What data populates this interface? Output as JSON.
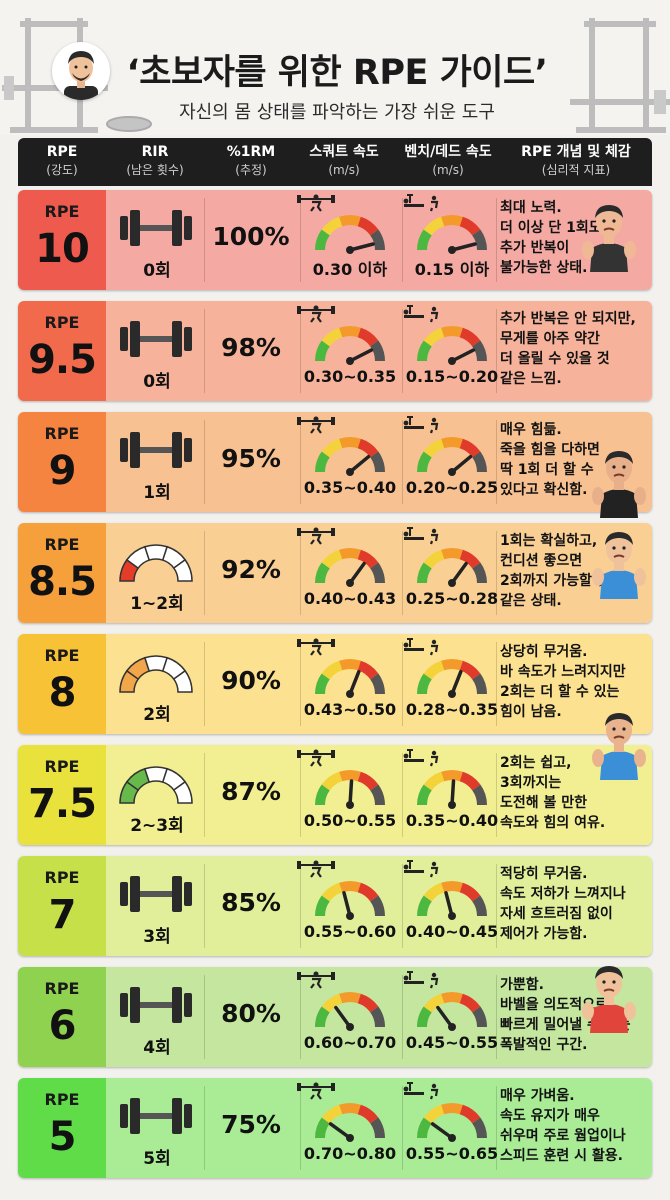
{
  "header": {
    "title": "‘초보자를 위한 RPE 가이드’",
    "subtitle": "자신의 몸 상태를 파악하는 가장 쉬운 도구"
  },
  "columns": [
    {
      "label": "RPE",
      "sub": "(강도)"
    },
    {
      "label": "RIR",
      "sub": "(남은 횟수)"
    },
    {
      "label": "%1RM",
      "sub": "(추정)"
    },
    {
      "label": "스쿼트 속도",
      "sub": "(m/s)"
    },
    {
      "label": "벤치/데드 속도",
      "sub": "(m/s)"
    },
    {
      "label": "RPE 개념 및 체감",
      "sub": "(심리적 지표)"
    }
  ],
  "rows": [
    {
      "label": "RPE",
      "value": "10",
      "rir": "0회",
      "rir_icon": "barbell-icon",
      "pct": "100%",
      "squat": "0.30 이하",
      "squat_level": 0.92,
      "bench": "0.15 이하",
      "bench_level": 0.92,
      "color": "#ef5a4e",
      "tint": "#f4a9a3",
      "lines": [
        "최대 노력.",
        "더 이상 단 1회도",
        "추가 반복이",
        "불가능한 상태."
      ]
    },
    {
      "label": "RPE",
      "value": "9.5",
      "rir": "0회",
      "rir_icon": "barbell-icon",
      "pct": "98%",
      "squat": "0.30~0.35",
      "squat_level": 0.85,
      "bench": "0.15~0.20",
      "bench_level": 0.85,
      "color": "#f26a4c",
      "tint": "#f6b29a",
      "lines": [
        "추가 반복은 안 되지만,",
        "무게를 아주 약간",
        "더 올릴 수 있을 것",
        "같은 느낌."
      ]
    },
    {
      "label": "RPE",
      "value": "9",
      "rir": "1회",
      "rir_icon": "barbell-icon",
      "pct": "95%",
      "squat": "0.35~0.40",
      "squat_level": 0.78,
      "bench": "0.20~0.25",
      "bench_level": 0.78,
      "color": "#f4843f",
      "tint": "#f8c191",
      "lines": [
        "매우 힘듦.",
        "죽을 힘을 다하면",
        "딱 1회 더 할 수",
        "있다고 확신함."
      ]
    },
    {
      "label": "RPE",
      "value": "8.5",
      "rir": "1~2회",
      "rir_icon": "arc-gauge-icon",
      "pct": "92%",
      "squat": "0.40~0.43",
      "squat_level": 0.7,
      "bench": "0.25~0.28",
      "bench_level": 0.7,
      "color": "#f6a03c",
      "tint": "#f9cf94",
      "lines": [
        "1회는 확실하고,",
        "컨디션 좋으면",
        "2회까지 가능할 것",
        "같은 상태."
      ]
    },
    {
      "label": "RPE",
      "value": "8",
      "rir": "2회",
      "rir_icon": "arc-gauge-icon",
      "pct": "90%",
      "squat": "0.43~0.50",
      "squat_level": 0.62,
      "bench": "0.28~0.35",
      "bench_level": 0.62,
      "color": "#f7c236",
      "tint": "#fbe190",
      "lines": [
        "상당히 무거움.",
        "바 속도가 느려지지만",
        "2회는 더 할 수 있는",
        "힘이 남음."
      ]
    },
    {
      "label": "RPE",
      "value": "7.5",
      "rir": "2~3회",
      "rir_icon": "arc-gauge-icon",
      "pct": "87%",
      "squat": "0.50~0.55",
      "squat_level": 0.52,
      "bench": "0.35~0.40",
      "bench_level": 0.52,
      "color": "#e9e23d",
      "tint": "#f2ef93",
      "lines": [
        "2회는 쉽고,",
        "3회까지는",
        "도전해 볼 만한",
        "속도와 힘의 여유."
      ]
    },
    {
      "label": "RPE",
      "value": "7",
      "rir": "3회",
      "rir_icon": "barbell-icon",
      "pct": "85%",
      "squat": "0.55~0.60",
      "squat_level": 0.42,
      "bench": "0.40~0.45",
      "bench_level": 0.42,
      "color": "#c6e04a",
      "tint": "#e1ef9a",
      "lines": [
        "적당히 무거움.",
        "속도 저하가 느껴지나",
        "자세 흐트러짐 없이",
        "제어가 가능함."
      ]
    },
    {
      "label": "RPE",
      "value": "6",
      "rir": "4회",
      "rir_icon": "barbell-icon",
      "pct": "80%",
      "squat": "0.60~0.70",
      "squat_level": 0.3,
      "bench": "0.45~0.55",
      "bench_level": 0.3,
      "color": "#8fd24f",
      "tint": "#c4e69f",
      "lines": [
        "가뿐함.",
        "바벨을 의도적으로",
        "빠르게 밀어낼 수 있는",
        "폭발적인 구간."
      ]
    },
    {
      "label": "RPE",
      "value": "5",
      "rir": "5회",
      "rir_icon": "barbell-icon",
      "pct": "75%",
      "squat": "0.70~0.80",
      "squat_level": 0.2,
      "bench": "0.55~0.65",
      "bench_level": 0.2,
      "color": "#5fdc48",
      "tint": "#a9ec95",
      "lines": [
        "매우 가벼움.",
        "속도 유지가 매우",
        "쉬우며 주로 웜업이나",
        "스피드 훈련 시 활용."
      ]
    }
  ],
  "colors": {
    "header_bg": "#1e1e1e",
    "gauge_red": "#e03a2a",
    "gauge_orange": "#f39a2a",
    "gauge_yellow": "#f3d23a",
    "gauge_green": "#4cb83f",
    "gauge_gray": "#555555"
  }
}
